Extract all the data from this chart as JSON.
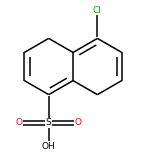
{
  "bg_color": "#ffffff",
  "line_color": "#000000",
  "atom_colors": {
    "Cl": "#00aa00",
    "S": "#000000",
    "O": "#ff0000",
    "H": "#000000"
  },
  "figsize": [
    1.52,
    1.52
  ],
  "dpi": 100,
  "bond_lw": 1.1,
  "scale": 0.19,
  "ox": 0.48,
  "oy": 0.54
}
